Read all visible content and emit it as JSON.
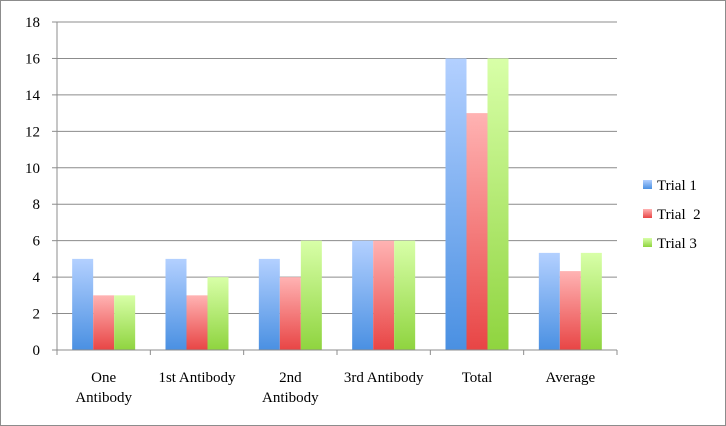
{
  "chart_data": {
    "type": "bar",
    "categories": [
      [
        "One",
        "Antibody"
      ],
      [
        "1st Antibody"
      ],
      [
        "2nd",
        "Antibody"
      ],
      [
        "3rd Antibody"
      ],
      [
        "Total"
      ],
      [
        "Average"
      ]
    ],
    "series": [
      {
        "name": "Trial 1",
        "values": [
          5,
          5,
          5,
          6,
          16,
          5.33
        ]
      },
      {
        "name": "Trial  2",
        "values": [
          3,
          3,
          4,
          6,
          13,
          4.33
        ]
      },
      {
        "name": "Trial 3",
        "values": [
          3,
          4,
          6,
          6,
          16,
          5.33
        ]
      }
    ],
    "ylim": [
      0,
      18
    ],
    "yticks": [
      "0",
      "2",
      "4",
      "6",
      "8",
      "10",
      "12",
      "14",
      "16",
      "18"
    ],
    "grid": true,
    "legend_position": "right",
    "title": "",
    "xlabel": "",
    "ylabel": "",
    "colors": {
      "series": [
        {
          "light": "#b3d0ff",
          "dark": "#4a90e2"
        },
        {
          "light": "#ffb3b3",
          "dark": "#e84545"
        },
        {
          "light": "#d8ffa8",
          "dark": "#8fd43f"
        }
      ],
      "gridline": "#8c8c8c",
      "axis": "#8c8c8c"
    }
  }
}
